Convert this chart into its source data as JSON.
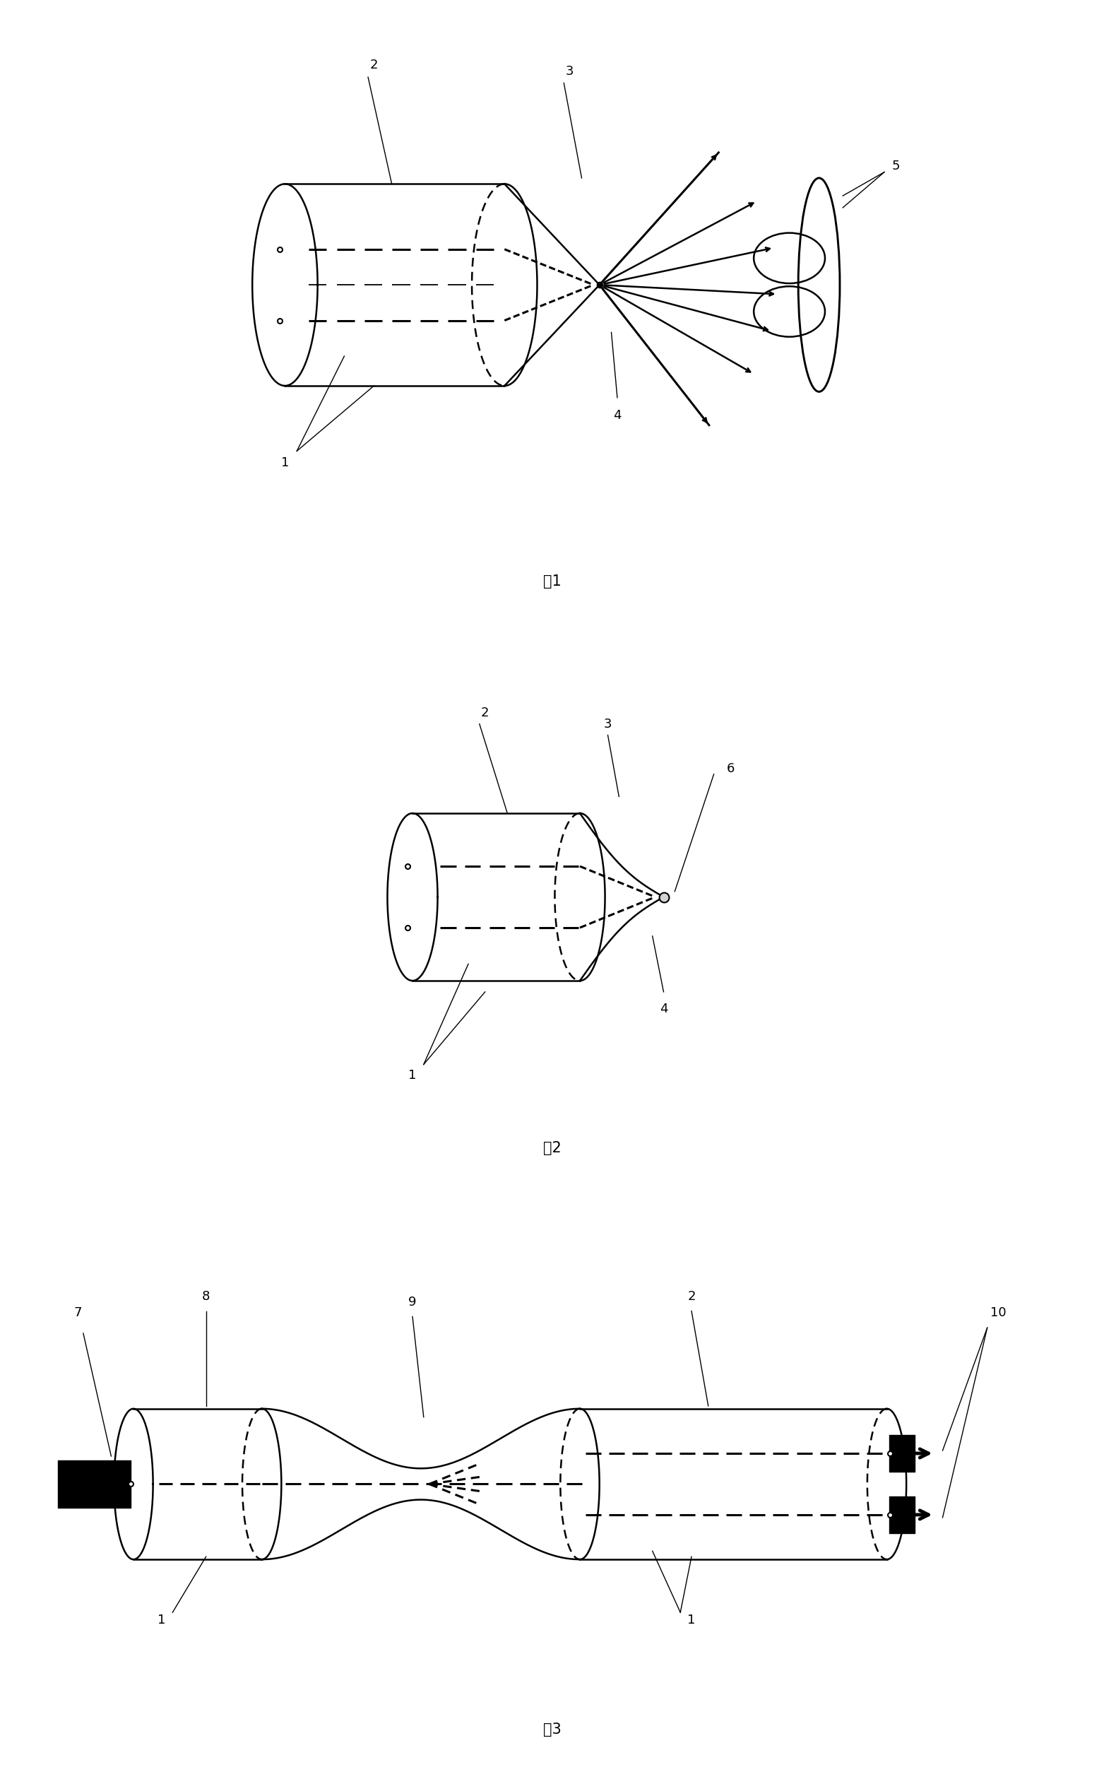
{
  "fig_width": 15.63,
  "fig_height": 25.08,
  "bg_color": "#ffffff",
  "lw": 1.6,
  "lw_thick": 2.2,
  "lw_dash": 2.0,
  "fig1_caption": "图1",
  "fig2_caption": "图2",
  "fig3_caption": "图3",
  "label_fontsize": 13,
  "caption_fontsize": 15
}
